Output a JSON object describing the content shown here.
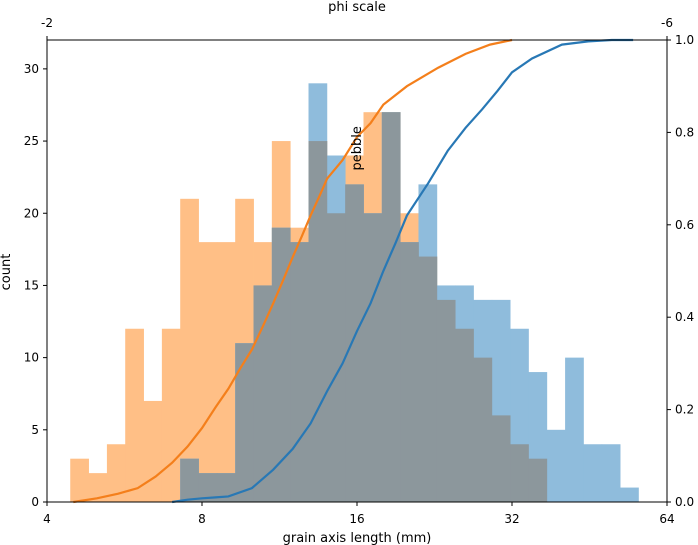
{
  "chart_data": {
    "type": "histogram",
    "xlabel": "grain axis length (mm)",
    "ylabel": "count",
    "x_scale": "log2",
    "xlim": [
      4,
      64
    ],
    "ylim": [
      0,
      32
    ],
    "x_ticks": [
      4,
      8,
      16,
      32,
      64
    ],
    "y_ticks": [
      0,
      5,
      10,
      15,
      20,
      25,
      30
    ],
    "secondary_x": {
      "label": "phi scale",
      "scale": "phi",
      "tick_labels": [
        "-2",
        "-6"
      ],
      "tick_positions_mm": [
        4,
        64
      ]
    },
    "secondary_y": {
      "range": [
        0,
        1
      ],
      "ticks": [
        "0.0",
        "0.2",
        "0.4",
        "0.6",
        "0.8",
        "1.0"
      ]
    },
    "annotations": [
      {
        "text": "pebble",
        "x_mm": 16,
        "y": 24.5,
        "rotation": -90
      }
    ],
    "colors": {
      "series_a_fill": "#ffbf86",
      "series_b_fill": "#8fbcdc",
      "overlap_fill": "#8c979c",
      "series_a_line": "#f47f1b",
      "series_b_line": "#2878b5"
    },
    "bin_edges": [
      4.438,
      4.817,
      5.229,
      5.675,
      6.16,
      6.686,
      7.257,
      7.877,
      8.55,
      9.28,
      10.073,
      10.933,
      11.867,
      12.881,
      13.981,
      15.175,
      16.471,
      17.878,
      19.405,
      21.062,
      22.861,
      24.814,
      26.934,
      29.234,
      31.731,
      34.441,
      37.383,
      40.576,
      44.042,
      47.803,
      51.886,
      56.318
    ],
    "series": [
      {
        "values": [
          3,
          2,
          4,
          12,
          7,
          12,
          21,
          18,
          18,
          21,
          18,
          25,
          19,
          25,
          20,
          24,
          27,
          27,
          20,
          17,
          14,
          12,
          10,
          6,
          4,
          3,
          0,
          0,
          0,
          0,
          0
        ]
      },
      {
        "values": [
          0,
          0,
          0,
          0,
          0,
          0,
          3,
          2,
          2,
          11,
          15,
          19,
          18,
          29,
          24,
          22,
          20,
          27,
          18,
          22,
          15,
          15,
          14,
          14,
          12,
          9,
          5,
          10,
          4,
          4,
          1
        ]
      }
    ],
    "cdf_series": [
      {
        "points": [
          [
            4.5,
            0.0
          ],
          [
            5.0,
            0.008
          ],
          [
            5.5,
            0.018
          ],
          [
            6.0,
            0.03
          ],
          [
            6.5,
            0.055
          ],
          [
            7.0,
            0.085
          ],
          [
            7.5,
            0.12
          ],
          [
            8.0,
            0.16
          ],
          [
            8.5,
            0.205
          ],
          [
            9.0,
            0.245
          ],
          [
            9.5,
            0.29
          ],
          [
            10.0,
            0.33
          ],
          [
            10.5,
            0.38
          ],
          [
            11.0,
            0.43
          ],
          [
            11.5,
            0.48
          ],
          [
            12.0,
            0.53
          ],
          [
            12.5,
            0.575
          ],
          [
            13.0,
            0.62
          ],
          [
            13.5,
            0.66
          ],
          [
            14.0,
            0.7
          ],
          [
            15.0,
            0.74
          ],
          [
            16.0,
            0.79
          ],
          [
            17.0,
            0.82
          ],
          [
            18.0,
            0.86
          ],
          [
            20.0,
            0.9
          ],
          [
            23.0,
            0.94
          ],
          [
            26.0,
            0.97
          ],
          [
            29.0,
            0.99
          ],
          [
            32.0,
            1.0
          ]
        ]
      },
      {
        "points": [
          [
            7.0,
            0.0
          ],
          [
            7.5,
            0.005
          ],
          [
            8.0,
            0.008
          ],
          [
            8.5,
            0.01
          ],
          [
            9.0,
            0.012
          ],
          [
            10.0,
            0.03
          ],
          [
            11.0,
            0.07
          ],
          [
            12.0,
            0.115
          ],
          [
            13.0,
            0.17
          ],
          [
            14.0,
            0.24
          ],
          [
            15.0,
            0.3
          ],
          [
            16.0,
            0.37
          ],
          [
            17.0,
            0.43
          ],
          [
            18.0,
            0.5
          ],
          [
            19.0,
            0.56
          ],
          [
            20.0,
            0.62
          ],
          [
            22.0,
            0.69
          ],
          [
            24.0,
            0.76
          ],
          [
            26.0,
            0.81
          ],
          [
            28.0,
            0.85
          ],
          [
            30.0,
            0.89
          ],
          [
            32.0,
            0.93
          ],
          [
            35.0,
            0.96
          ],
          [
            40.0,
            0.99
          ],
          [
            45.0,
            0.997
          ],
          [
            50.0,
            1.0
          ],
          [
            55.0,
            1.0
          ]
        ]
      }
    ]
  }
}
